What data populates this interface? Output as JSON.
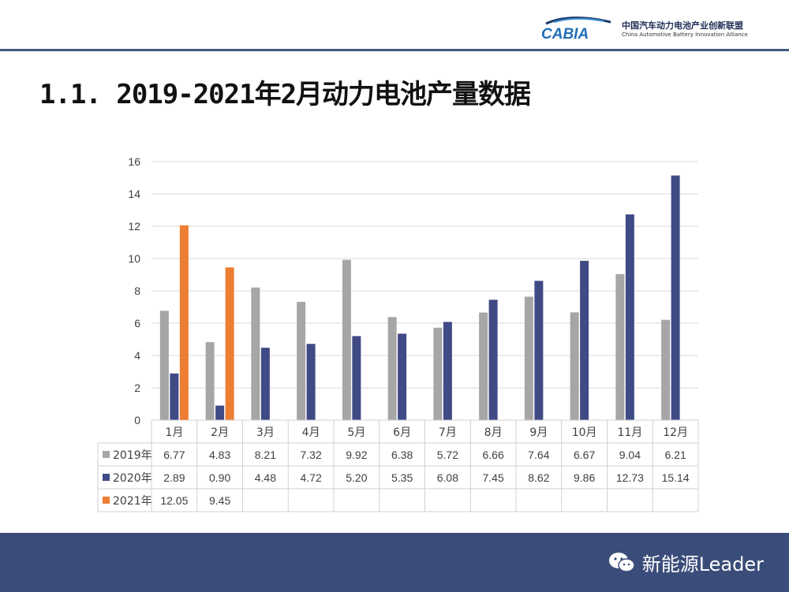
{
  "header": {
    "logo_text": "CABIA",
    "org_name_cn": "中国汽车动力电池产业创新联盟",
    "org_name_en": "China Automotive Battery Innovation Alliance"
  },
  "slide": {
    "title": "1.1.  2019-2021年2月动力电池产量数据"
  },
  "chart_data": {
    "type": "bar",
    "categories": [
      "1月",
      "2月",
      "3月",
      "4月",
      "5月",
      "6月",
      "7月",
      "8月",
      "9月",
      "10月",
      "11月",
      "12月"
    ],
    "series": [
      {
        "name": "2019年",
        "color": "#a6a6a6",
        "values": [
          6.77,
          4.83,
          8.21,
          7.32,
          9.92,
          6.38,
          5.72,
          6.66,
          7.64,
          6.67,
          9.04,
          6.21
        ],
        "labels": [
          "6.77",
          "4.83",
          "8.21",
          "7.32",
          "9.92",
          "6.38",
          "5.72",
          "6.66",
          "7.64",
          "6.67",
          "9.04",
          "6.21"
        ]
      },
      {
        "name": "2020年",
        "color": "#404a85",
        "values": [
          2.89,
          0.9,
          4.48,
          4.72,
          5.2,
          5.35,
          6.08,
          7.45,
          8.62,
          9.86,
          12.73,
          15.14
        ],
        "labels": [
          "2.89",
          "0.90",
          "4.48",
          "4.72",
          "5.20",
          "5.35",
          "6.08",
          "7.45",
          "8.62",
          "9.86",
          "12.73",
          "15.14"
        ]
      },
      {
        "name": "2021年",
        "color": "#ed7d31",
        "values": [
          12.05,
          9.45,
          null,
          null,
          null,
          null,
          null,
          null,
          null,
          null,
          null,
          null
        ],
        "labels": [
          "12.05",
          "9.45",
          "",
          "",
          "",
          "",
          "",
          "",
          "",
          "",
          "",
          ""
        ]
      }
    ],
    "ylim": [
      0,
      16
    ],
    "yticks": [
      "0",
      "2",
      "4",
      "6",
      "8",
      "10",
      "12",
      "14",
      "16"
    ],
    "grid": true,
    "legend": "data-table"
  },
  "footer": {
    "watermark_icon": "wechat-icon",
    "watermark_text": "新能源Leader"
  }
}
